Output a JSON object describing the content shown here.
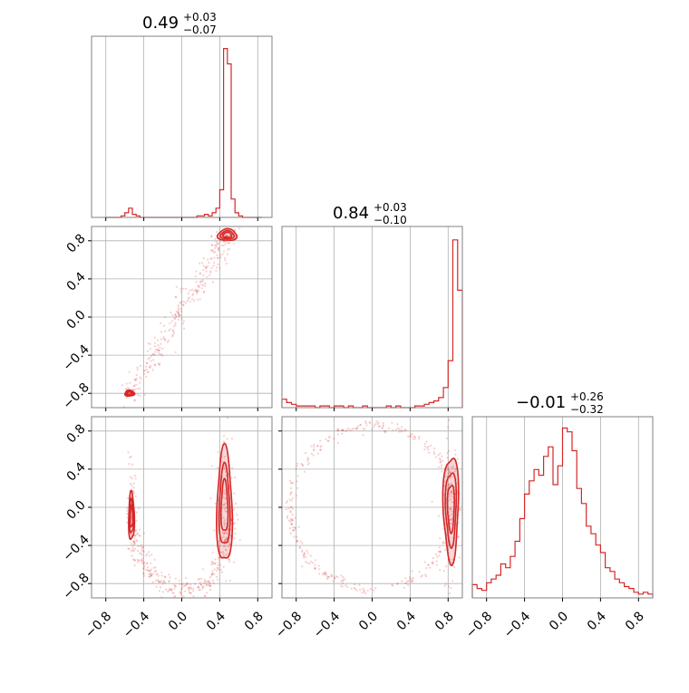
{
  "colors": {
    "accent": "#d62728",
    "frame": "#808080",
    "grid": "#b0b0b0"
  },
  "chart_data": [
    {
      "type": "histogram",
      "panel": "diag-1",
      "title": {
        "median": "0.49",
        "upper": "+0.03",
        "lower": "−0.07"
      },
      "xlim": [
        -0.95,
        0.95
      ],
      "grid": true,
      "bin_edges": [
        -0.8,
        -0.76,
        -0.72,
        -0.68,
        -0.64,
        -0.6,
        -0.56,
        -0.52,
        -0.48,
        -0.44,
        -0.4,
        -0.36,
        -0.32,
        -0.28,
        -0.24,
        -0.2,
        -0.16,
        -0.12,
        -0.08,
        -0.04,
        0.0,
        0.04,
        0.08,
        0.12,
        0.16,
        0.2,
        0.24,
        0.28,
        0.32,
        0.36,
        0.4,
        0.44,
        0.48,
        0.52,
        0.56,
        0.6,
        0.64,
        0.68,
        0.72,
        0.76,
        0.8,
        0.84
      ],
      "counts": [
        0,
        0,
        0,
        0,
        1,
        3,
        6,
        2,
        1,
        0,
        0,
        0,
        0,
        0,
        0,
        0,
        0,
        0,
        0,
        0,
        0,
        0,
        0,
        0,
        1,
        1,
        2,
        1,
        3,
        6,
        18,
        110,
        100,
        12,
        3,
        1,
        0,
        0,
        0,
        0,
        0
      ],
      "ylim": [
        0,
        118
      ]
    },
    {
      "type": "histogram",
      "panel": "diag-2",
      "title": {
        "median": "0.84",
        "upper": "+0.03",
        "lower": "−0.10"
      },
      "xlim": [
        -0.95,
        0.95
      ],
      "grid": true,
      "bin_edges": [
        -0.95,
        -0.9,
        -0.85,
        -0.8,
        -0.75,
        -0.7,
        -0.65,
        -0.6,
        -0.55,
        -0.5,
        -0.45,
        -0.4,
        -0.35,
        -0.3,
        -0.25,
        -0.2,
        -0.15,
        -0.1,
        -0.05,
        0.0,
        0.05,
        0.1,
        0.15,
        0.2,
        0.25,
        0.3,
        0.35,
        0.4,
        0.45,
        0.5,
        0.55,
        0.6,
        0.65,
        0.7,
        0.75,
        0.8,
        0.85,
        0.9,
        0.95
      ],
      "counts": [
        5,
        3,
        2,
        1,
        1,
        1,
        1,
        0,
        1,
        1,
        0,
        1,
        1,
        0,
        1,
        0,
        0,
        1,
        0,
        0,
        0,
        0,
        1,
        0,
        1,
        0,
        0,
        0,
        1,
        1,
        2,
        3,
        4,
        6,
        12,
        28,
        100,
        70
      ],
      "ylim": [
        0,
        108
      ]
    },
    {
      "type": "histogram",
      "panel": "diag-3",
      "title": {
        "median": "−0.01",
        "upper": "+0.26",
        "lower": "−0.32"
      },
      "xlim": [
        -0.95,
        0.95
      ],
      "grid": true,
      "bin_edges": [
        -0.95,
        -0.9,
        -0.85,
        -0.8,
        -0.75,
        -0.7,
        -0.65,
        -0.6,
        -0.55,
        -0.5,
        -0.45,
        -0.4,
        -0.35,
        -0.3,
        -0.25,
        -0.2,
        -0.15,
        -0.1,
        -0.05,
        0.0,
        0.05,
        0.1,
        0.15,
        0.2,
        0.25,
        0.3,
        0.35,
        0.4,
        0.45,
        0.5,
        0.55,
        0.6,
        0.65,
        0.7,
        0.75,
        0.8,
        0.85,
        0.9,
        0.95
      ],
      "counts": [
        7,
        5,
        4,
        8,
        10,
        12,
        18,
        16,
        22,
        30,
        42,
        55,
        62,
        68,
        65,
        75,
        80,
        60,
        70,
        90,
        88,
        78,
        58,
        50,
        38,
        34,
        28,
        24,
        16,
        14,
        10,
        8,
        6,
        5,
        3,
        2,
        3,
        2
      ],
      "ylim": [
        0,
        96
      ]
    },
    {
      "type": "scatter-contour",
      "panel": "row2-col1",
      "xlim": [
        -0.95,
        0.95
      ],
      "ylim": [
        -0.95,
        0.95
      ],
      "grid": true,
      "note_regions": [
        {
          "center": [
            0.48,
            0.86
          ],
          "extent": [
            0.1,
            0.06
          ]
        },
        {
          "center": [
            -0.55,
            -0.8
          ],
          "extent": [
            0.05,
            0.03
          ]
        }
      ]
    },
    {
      "type": "scatter-contour",
      "panel": "row3-col1",
      "xlim": [
        -0.95,
        0.95
      ],
      "ylim": [
        -0.95,
        0.95
      ],
      "grid": true,
      "note_regions": [
        {
          "center": [
            0.45,
            0.0
          ],
          "extent": [
            0.08,
            0.6
          ]
        },
        {
          "center": [
            -0.53,
            -0.1
          ],
          "extent": [
            0.03,
            0.25
          ]
        }
      ]
    },
    {
      "type": "scatter-contour",
      "panel": "row3-col2",
      "xlim": [
        -0.95,
        0.95
      ],
      "ylim": [
        -0.95,
        0.95
      ],
      "grid": true,
      "note_regions": [
        {
          "center": [
            0.83,
            0.0
          ],
          "extent": [
            0.08,
            0.55
          ]
        }
      ]
    }
  ],
  "axes": {
    "tick_values": [
      -0.8,
      -0.4,
      0.0,
      0.4,
      0.8
    ],
    "tick_labels": [
      "−0.8",
      "−0.4",
      "0.0",
      "0.4",
      "0.8"
    ]
  }
}
